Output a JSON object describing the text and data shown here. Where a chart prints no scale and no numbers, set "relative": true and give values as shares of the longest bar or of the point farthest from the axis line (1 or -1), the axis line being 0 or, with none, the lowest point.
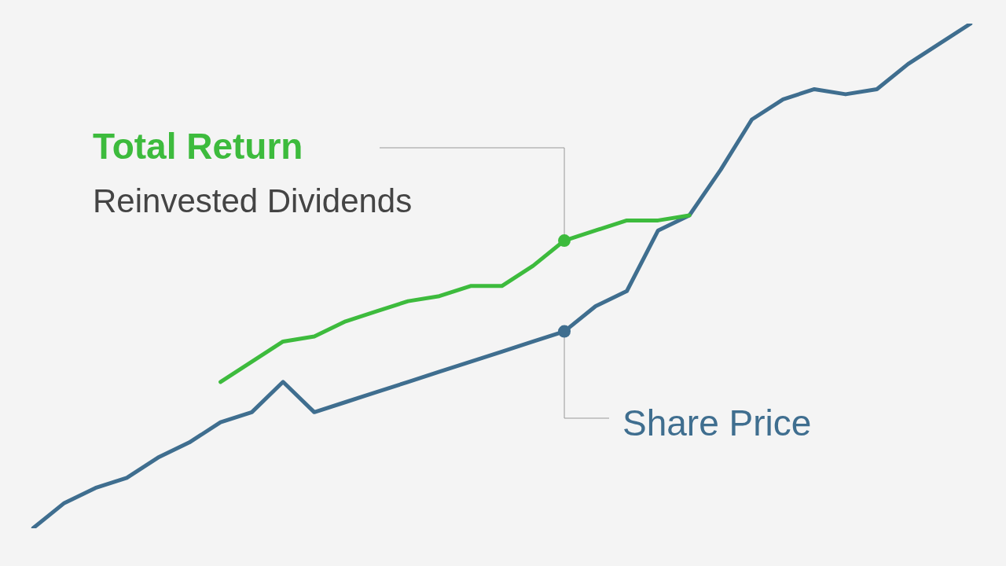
{
  "chart_data": {
    "type": "line",
    "relative": true,
    "categories": [
      null,
      null,
      null,
      null,
      null,
      null,
      null,
      null,
      null,
      null,
      null,
      null,
      null,
      null,
      null,
      null,
      null,
      null,
      null,
      null,
      null,
      null,
      null,
      null,
      null,
      null,
      null,
      null,
      null,
      null,
      null
    ],
    "series": [
      {
        "name": "Total Return",
        "color": "#3dbb3d",
        "values": [
          null,
          null,
          null,
          null,
          null,
          null,
          0.29,
          0.33,
          0.37,
          0.38,
          0.41,
          0.43,
          0.45,
          0.46,
          0.48,
          0.48,
          0.52,
          0.57,
          0.59,
          0.61,
          0.61,
          0.62,
          null,
          null,
          null,
          null,
          null,
          null,
          null,
          null,
          null
        ]
      },
      {
        "name": "Share Price",
        "color": "#3f6e8f",
        "values": [
          0,
          0.05,
          0.08,
          0.1,
          0.14,
          0.17,
          0.21,
          0.23,
          0.29,
          0.23,
          0.25,
          0.27,
          0.29,
          0.31,
          0.33,
          0.35,
          0.37,
          0.39,
          0.44,
          0.47,
          0.59,
          0.62,
          0.71,
          0.81,
          0.85,
          0.87,
          0.86,
          0.87,
          0.92,
          0.96,
          1
        ]
      }
    ],
    "annotations": [
      "Reinvested Dividends"
    ],
    "grid": false,
    "legend": false,
    "tick_labels": false
  }
}
